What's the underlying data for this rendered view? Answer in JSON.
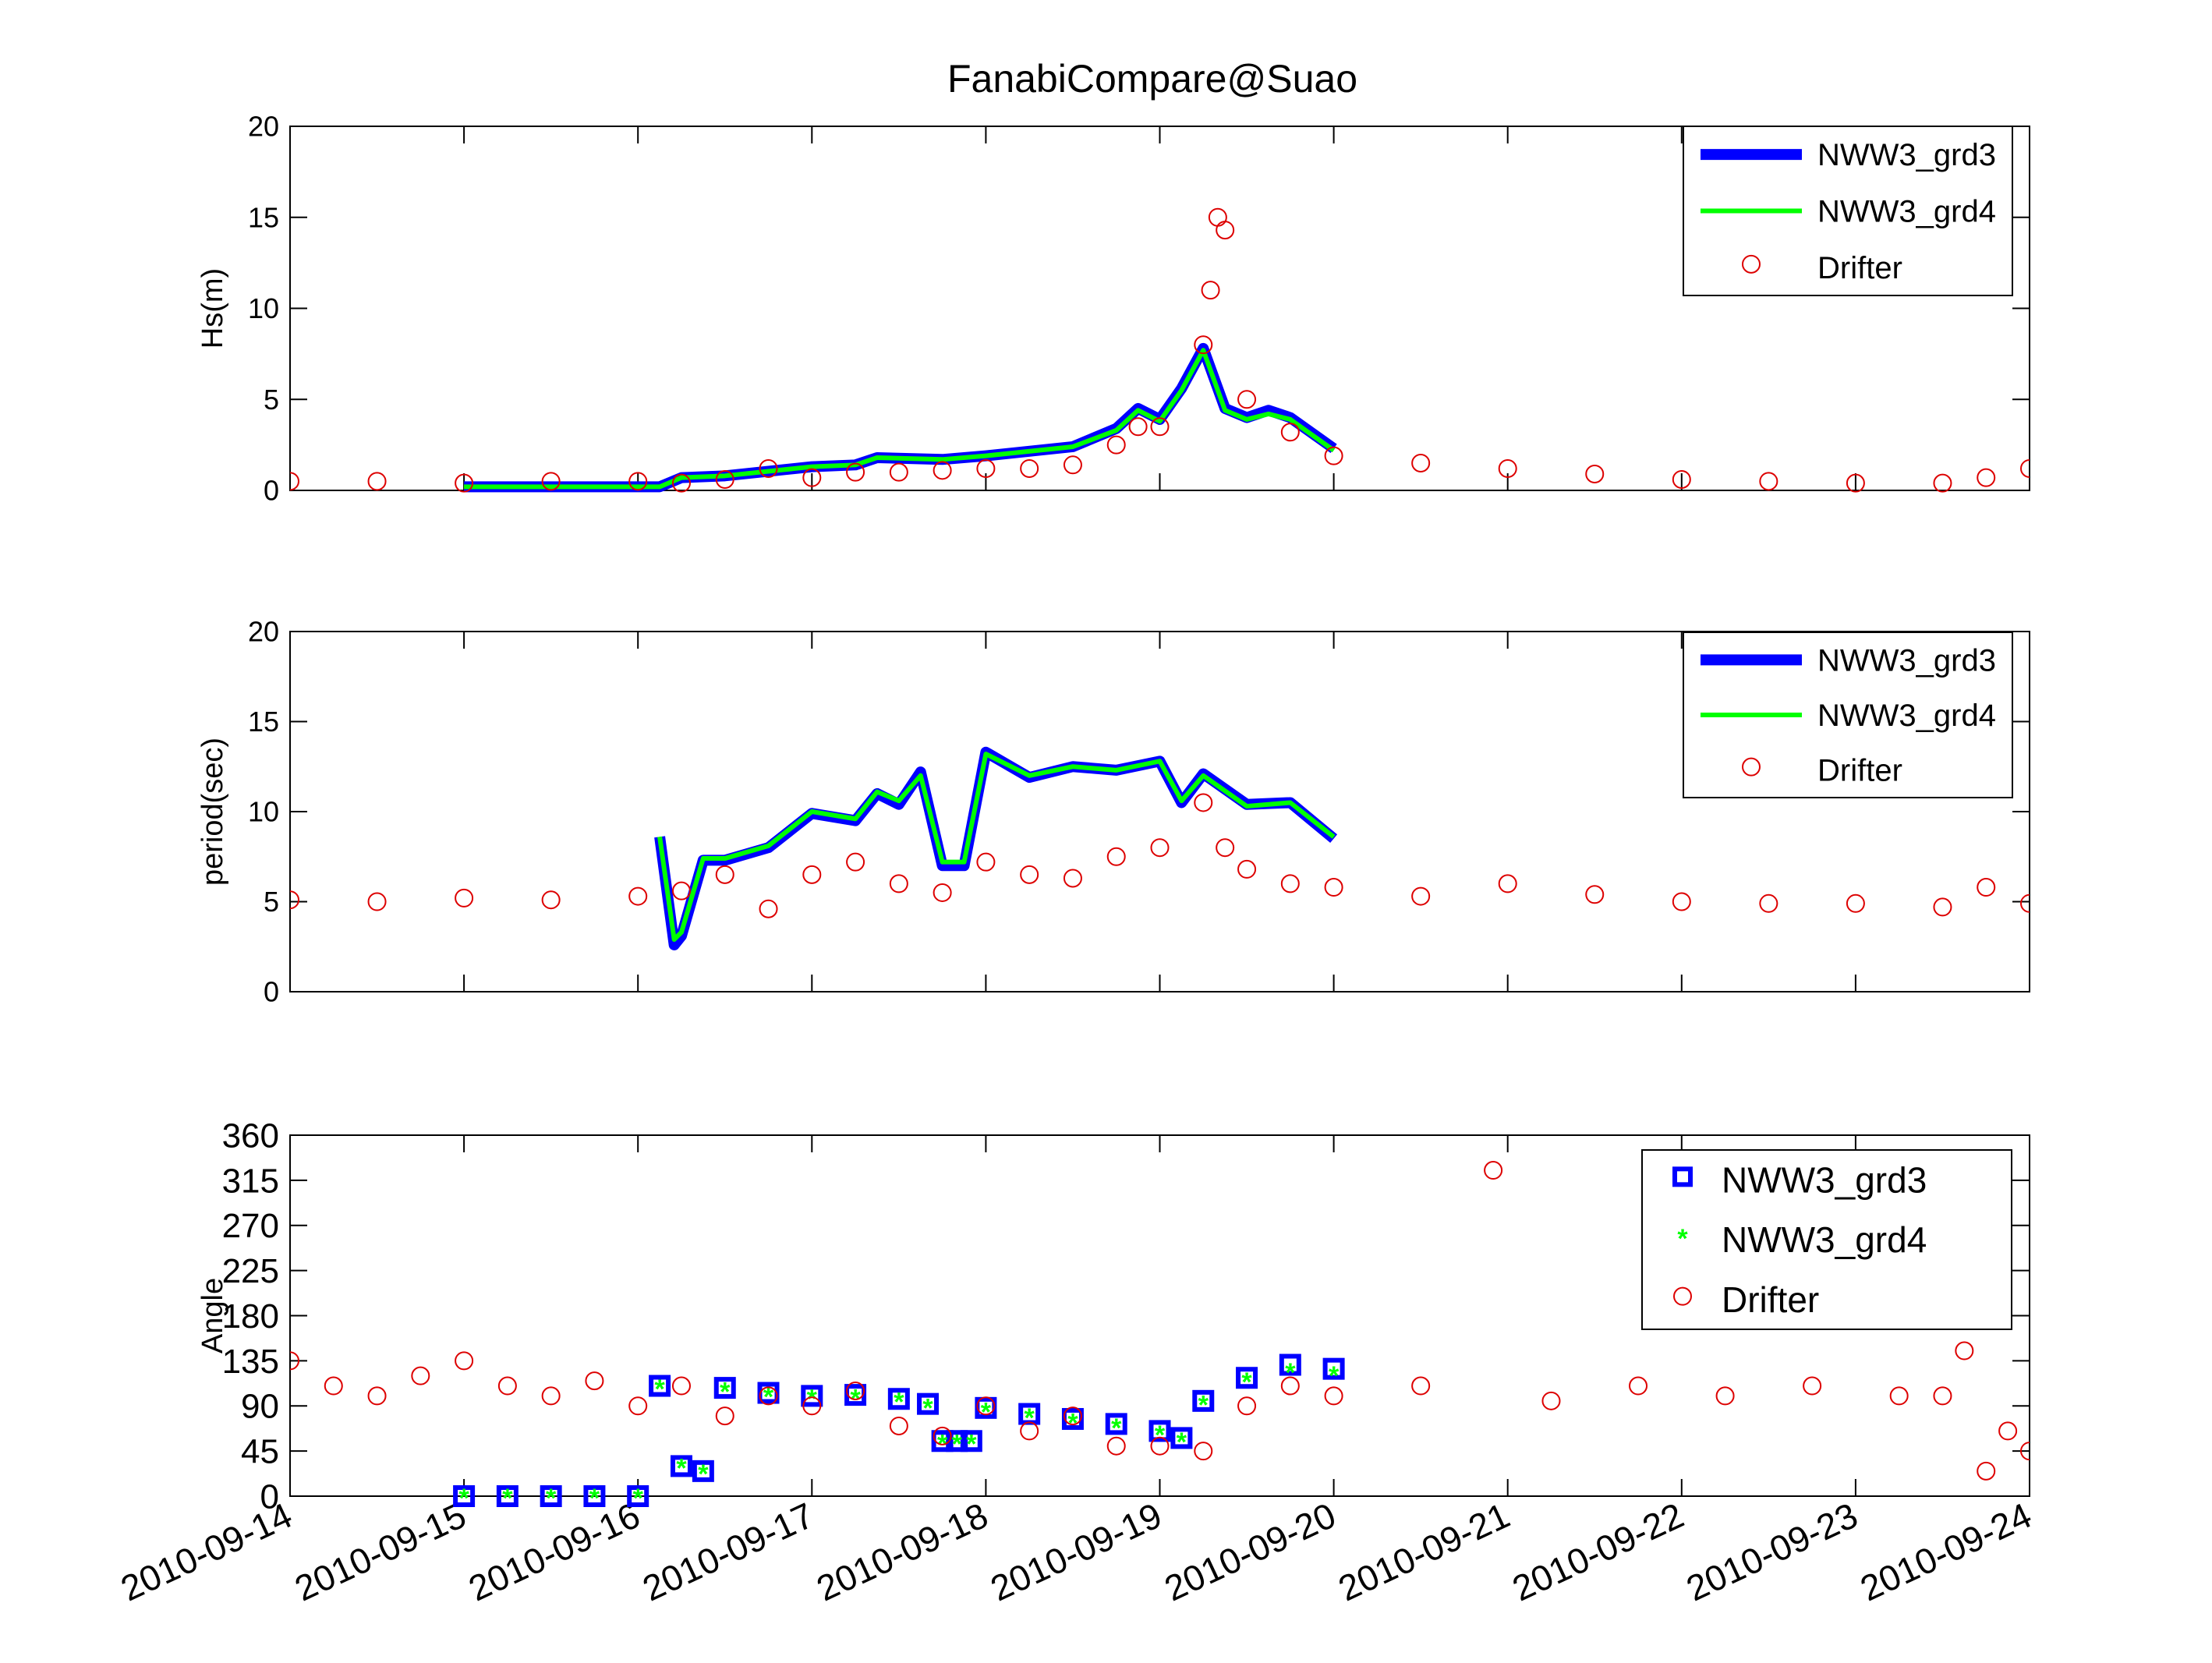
{
  "title": "FanabiCompare@Suao",
  "colors": {
    "grd3": "#0000ff",
    "grd4": "#00ff00",
    "drifter": "#dd0000",
    "axis": "#000000"
  },
  "x_ticks": [
    "2010-09-14",
    "2010-09-15",
    "2010-09-16",
    "2010-09-17",
    "2010-09-18",
    "2010-09-19",
    "2010-09-20",
    "2010-09-21",
    "2010-09-22",
    "2010-09-23",
    "2010-09-24"
  ],
  "chart_data": [
    {
      "type": "line",
      "title": "FanabiCompare@Suao",
      "xlabel": "",
      "ylabel": "Hs(m)",
      "xlim": [
        "2010-09-14",
        "2010-09-24"
      ],
      "ylim": [
        0,
        20
      ],
      "yticks": [
        "0",
        "5",
        "10",
        "15",
        "20"
      ],
      "legend_position": "top-right",
      "grid": false,
      "series": [
        {
          "name": "NWW3_grd3",
          "style": "line",
          "x": [
            "2010-09-15T00:00",
            "2010-09-16T03:00",
            "2010-09-16T06:00",
            "2010-09-16T12:00",
            "2010-09-17T00:00",
            "2010-09-17T06:00",
            "2010-09-17T09:00",
            "2010-09-17T18:00",
            "2010-09-18T00:00",
            "2010-09-18T12:00",
            "2010-09-18T18:00",
            "2010-09-18T21:00",
            "2010-09-19T00:00",
            "2010-09-19T03:00",
            "2010-09-19T06:00",
            "2010-09-19T09:00",
            "2010-09-19T12:00",
            "2010-09-19T15:00",
            "2010-09-19T18:00",
            "2010-09-20T00:00"
          ],
          "y": [
            0.2,
            0.2,
            0.7,
            0.8,
            1.3,
            1.4,
            1.8,
            1.7,
            1.9,
            2.4,
            3.4,
            4.5,
            3.9,
            5.6,
            7.8,
            4.5,
            4.0,
            4.4,
            4.0,
            2.3
          ]
        },
        {
          "name": "NWW3_grd4",
          "style": "line",
          "x": [
            "2010-09-15T00:00",
            "2010-09-16T03:00",
            "2010-09-16T06:00",
            "2010-09-16T12:00",
            "2010-09-17T00:00",
            "2010-09-17T06:00",
            "2010-09-17T09:00",
            "2010-09-17T18:00",
            "2010-09-18T00:00",
            "2010-09-18T12:00",
            "2010-09-18T18:00",
            "2010-09-18T21:00",
            "2010-09-19T00:00",
            "2010-09-19T03:00",
            "2010-09-19T06:00",
            "2010-09-19T09:00",
            "2010-09-19T12:00",
            "2010-09-19T15:00",
            "2010-09-19T18:00",
            "2010-09-20T00:00"
          ],
          "y": [
            0.2,
            0.2,
            0.7,
            0.8,
            1.3,
            1.4,
            1.8,
            1.7,
            1.9,
            2.4,
            3.3,
            4.4,
            3.8,
            5.5,
            7.7,
            4.4,
            3.9,
            4.2,
            3.9,
            2.2
          ]
        },
        {
          "name": "Drifter",
          "style": "circles",
          "x": [
            "2010-09-14T00:00",
            "2010-09-14T12:00",
            "2010-09-15T00:00",
            "2010-09-15T12:00",
            "2010-09-16T00:00",
            "2010-09-16T06:00",
            "2010-09-16T12:00",
            "2010-09-16T18:00",
            "2010-09-17T00:00",
            "2010-09-17T06:00",
            "2010-09-17T12:00",
            "2010-09-17T18:00",
            "2010-09-18T00:00",
            "2010-09-18T06:00",
            "2010-09-18T12:00",
            "2010-09-18T18:00",
            "2010-09-18T21:00",
            "2010-09-19T00:00",
            "2010-09-19T06:00",
            "2010-09-19T07:00",
            "2010-09-19T08:00",
            "2010-09-19T09:00",
            "2010-09-19T12:00",
            "2010-09-19T18:00",
            "2010-09-20T00:00",
            "2010-09-20T12:00",
            "2010-09-21T00:00",
            "2010-09-21T12:00",
            "2010-09-22T00:00",
            "2010-09-22T12:00",
            "2010-09-23T00:00",
            "2010-09-23T12:00",
            "2010-09-23T18:00",
            "2010-09-24T00:00"
          ],
          "y": [
            0.5,
            0.5,
            0.4,
            0.5,
            0.5,
            0.4,
            0.6,
            1.2,
            0.7,
            1.0,
            1.0,
            1.1,
            1.2,
            1.2,
            1.4,
            2.5,
            3.5,
            3.5,
            8.0,
            11.0,
            15.0,
            14.3,
            5.0,
            3.2,
            1.9,
            1.5,
            1.2,
            0.9,
            0.6,
            0.5,
            0.4,
            0.4,
            0.7,
            1.2
          ]
        }
      ]
    },
    {
      "type": "line",
      "xlabel": "",
      "ylabel": "period(sec)",
      "xlim": [
        "2010-09-14",
        "2010-09-24"
      ],
      "ylim": [
        0,
        20
      ],
      "yticks": [
        "0",
        "5",
        "10",
        "15",
        "20"
      ],
      "legend_position": "top-right",
      "grid": false,
      "series": [
        {
          "name": "NWW3_grd3",
          "style": "line",
          "x": [
            "2010-09-16T03:00",
            "2010-09-16T05:00",
            "2010-09-16T06:00",
            "2010-09-16T09:00",
            "2010-09-16T12:00",
            "2010-09-16T18:00",
            "2010-09-17T00:00",
            "2010-09-17T06:00",
            "2010-09-17T09:00",
            "2010-09-17T12:00",
            "2010-09-17T15:00",
            "2010-09-17T18:00",
            "2010-09-17T21:00",
            "2010-09-18T00:00",
            "2010-09-18T06:00",
            "2010-09-18T12:00",
            "2010-09-18T18:00",
            "2010-09-19T00:00",
            "2010-09-19T03:00",
            "2010-09-19T06:00",
            "2010-09-19T12:00",
            "2010-09-19T18:00",
            "2010-09-20T00:00"
          ],
          "y": [
            8.6,
            2.6,
            3.1,
            7.3,
            7.3,
            8.0,
            9.9,
            9.5,
            11.0,
            10.4,
            12.2,
            7.0,
            7.0,
            13.3,
            11.9,
            12.5,
            12.3,
            12.8,
            10.5,
            12.1,
            10.4,
            10.5,
            8.5
          ]
        },
        {
          "name": "NWW3_grd4",
          "style": "line",
          "x": [
            "2010-09-16T03:00",
            "2010-09-16T05:00",
            "2010-09-16T06:00",
            "2010-09-16T09:00",
            "2010-09-16T12:00",
            "2010-09-16T18:00",
            "2010-09-17T00:00",
            "2010-09-17T06:00",
            "2010-09-17T09:00",
            "2010-09-17T12:00",
            "2010-09-17T15:00",
            "2010-09-17T18:00",
            "2010-09-17T21:00",
            "2010-09-18T00:00",
            "2010-09-18T06:00",
            "2010-09-18T12:00",
            "2010-09-18T18:00",
            "2010-09-19T00:00",
            "2010-09-19T03:00",
            "2010-09-19T06:00",
            "2010-09-19T12:00",
            "2010-09-19T18:00",
            "2010-09-20T00:00"
          ],
          "y": [
            8.6,
            2.9,
            3.3,
            7.4,
            7.4,
            8.1,
            10.0,
            9.6,
            11.1,
            10.6,
            12.0,
            7.2,
            7.2,
            13.2,
            12.0,
            12.5,
            12.3,
            12.8,
            10.6,
            12.0,
            10.3,
            10.5,
            8.6
          ]
        },
        {
          "name": "Drifter",
          "style": "circles",
          "x": [
            "2010-09-14T00:00",
            "2010-09-14T12:00",
            "2010-09-15T00:00",
            "2010-09-15T12:00",
            "2010-09-16T00:00",
            "2010-09-16T06:00",
            "2010-09-16T12:00",
            "2010-09-16T18:00",
            "2010-09-17T00:00",
            "2010-09-17T06:00",
            "2010-09-17T12:00",
            "2010-09-17T18:00",
            "2010-09-18T00:00",
            "2010-09-18T06:00",
            "2010-09-18T12:00",
            "2010-09-18T18:00",
            "2010-09-19T00:00",
            "2010-09-19T06:00",
            "2010-09-19T09:00",
            "2010-09-19T12:00",
            "2010-09-19T18:00",
            "2010-09-20T00:00",
            "2010-09-20T12:00",
            "2010-09-21T00:00",
            "2010-09-21T12:00",
            "2010-09-22T00:00",
            "2010-09-22T12:00",
            "2010-09-23T00:00",
            "2010-09-23T12:00",
            "2010-09-23T18:00",
            "2010-09-24T00:00"
          ],
          "y": [
            5.1,
            5.0,
            5.2,
            5.1,
            5.3,
            5.6,
            6.5,
            4.6,
            6.5,
            7.2,
            6.0,
            5.5,
            7.2,
            6.5,
            6.3,
            7.5,
            8.0,
            10.5,
            8.0,
            6.8,
            6.0,
            5.8,
            5.3,
            6.0,
            5.4,
            5.0,
            4.9,
            4.9,
            4.7,
            5.8,
            4.9
          ]
        }
      ]
    },
    {
      "type": "scatter",
      "xlabel": "",
      "ylabel": "Angle",
      "xlim": [
        "2010-09-14",
        "2010-09-24"
      ],
      "ylim": [
        0,
        360
      ],
      "yticks": [
        "0",
        "45",
        "90",
        "135",
        "180",
        "225",
        "270",
        "315",
        "360"
      ],
      "legend_position": "top-right",
      "grid": false,
      "series": [
        {
          "name": "NWW3_grd3",
          "style": "squares",
          "x": [
            "2010-09-15T00:00",
            "2010-09-15T06:00",
            "2010-09-15T12:00",
            "2010-09-15T18:00",
            "2010-09-16T00:00",
            "2010-09-16T03:00",
            "2010-09-16T06:00",
            "2010-09-16T09:00",
            "2010-09-16T12:00",
            "2010-09-16T18:00",
            "2010-09-17T00:00",
            "2010-09-17T06:00",
            "2010-09-17T12:00",
            "2010-09-17T16:00",
            "2010-09-17T18:00",
            "2010-09-17T20:00",
            "2010-09-17T22:00",
            "2010-09-18T00:00",
            "2010-09-18T06:00",
            "2010-09-18T12:00",
            "2010-09-18T18:00",
            "2010-09-19T00:00",
            "2010-09-19T03:00",
            "2010-09-19T06:00",
            "2010-09-19T12:00",
            "2010-09-19T18:00",
            "2010-09-20T00:00"
          ],
          "y": [
            0,
            0,
            0,
            0,
            0,
            110,
            30,
            25,
            108,
            103,
            100,
            101,
            97,
            92,
            55,
            55,
            55,
            88,
            82,
            77,
            72,
            65,
            58,
            95,
            118,
            131,
            127
          ]
        },
        {
          "name": "NWW3_grd4",
          "style": "stars",
          "x": [
            "2010-09-15T00:00",
            "2010-09-15T06:00",
            "2010-09-15T12:00",
            "2010-09-15T18:00",
            "2010-09-16T00:00",
            "2010-09-16T03:00",
            "2010-09-16T06:00",
            "2010-09-16T09:00",
            "2010-09-16T12:00",
            "2010-09-16T18:00",
            "2010-09-17T00:00",
            "2010-09-17T06:00",
            "2010-09-17T12:00",
            "2010-09-17T16:00",
            "2010-09-17T18:00",
            "2010-09-17T20:00",
            "2010-09-17T22:00",
            "2010-09-18T00:00",
            "2010-09-18T06:00",
            "2010-09-18T12:00",
            "2010-09-18T18:00",
            "2010-09-19T00:00",
            "2010-09-19T03:00",
            "2010-09-19T06:00",
            "2010-09-19T12:00",
            "2010-09-19T18:00",
            "2010-09-20T00:00"
          ],
          "y": [
            0,
            0,
            0,
            0,
            0,
            109,
            30,
            24,
            106,
            101,
            99,
            99,
            96,
            90,
            54,
            54,
            54,
            86,
            80,
            75,
            70,
            63,
            56,
            93,
            116,
            125,
            122
          ]
        },
        {
          "name": "Drifter",
          "style": "circles",
          "x": [
            "2010-09-14T00:00",
            "2010-09-14T06:00",
            "2010-09-14T12:00",
            "2010-09-14T18:00",
            "2010-09-15T00:00",
            "2010-09-15T06:00",
            "2010-09-15T12:00",
            "2010-09-15T18:00",
            "2010-09-16T00:00",
            "2010-09-16T06:00",
            "2010-09-16T12:00",
            "2010-09-16T18:00",
            "2010-09-17T00:00",
            "2010-09-17T06:00",
            "2010-09-17T12:00",
            "2010-09-17T18:00",
            "2010-09-18T00:00",
            "2010-09-18T06:00",
            "2010-09-18T12:00",
            "2010-09-18T18:00",
            "2010-09-19T00:00",
            "2010-09-19T06:00",
            "2010-09-19T12:00",
            "2010-09-19T18:00",
            "2010-09-20T00:00",
            "2010-09-20T12:00",
            "2010-09-20T22:00",
            "2010-09-21T06:00",
            "2010-09-21T18:00",
            "2010-09-22T06:00",
            "2010-09-22T18:00",
            "2010-09-23T06:00",
            "2010-09-23T12:00",
            "2010-09-23T15:00",
            "2010-09-23T18:00",
            "2010-09-23T21:00",
            "2010-09-24T00:00"
          ],
          "y": [
            135,
            110,
            100,
            120,
            135,
            110,
            100,
            115,
            90,
            110,
            80,
            100,
            90,
            105,
            70,
            60,
            90,
            65,
            80,
            50,
            50,
            45,
            90,
            110,
            100,
            110,
            325,
            95,
            110,
            100,
            110,
            100,
            100,
            145,
            25,
            65,
            45
          ]
        }
      ]
    }
  ]
}
